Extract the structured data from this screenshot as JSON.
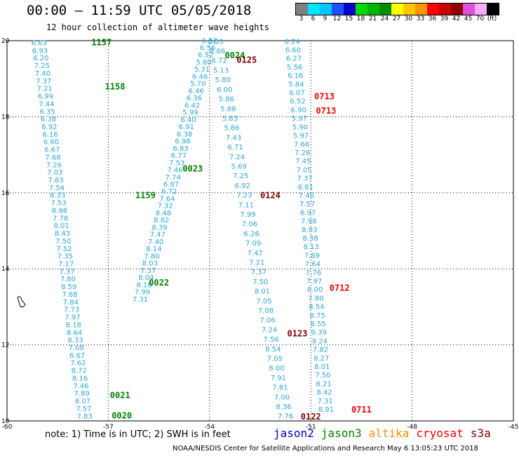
{
  "header": {
    "title": "00:00 – 11:59 UTC 05/05/2018",
    "subtitle": "12 hour collection of altimeter wave heights"
  },
  "colorbar": {
    "labels": [
      "3",
      "6",
      "9",
      "12",
      "15",
      "18",
      "21",
      "24",
      "27",
      "30",
      "33",
      "36",
      "39",
      "42",
      "45",
      "70",
      "(ft)"
    ],
    "colors": [
      "#808080",
      "#00e5ff",
      "#00c8ff",
      "#1e50ff",
      "#0000c8",
      "#00dc00",
      "#00b400",
      "#008c00",
      "#ffff00",
      "#ffc800",
      "#ff9600",
      "#ff0000",
      "#c80000",
      "#8c0000",
      "#dc50dc",
      "#ffaaff",
      "#000000"
    ]
  },
  "map": {
    "lon_ticks": [
      "-60",
      "-57",
      "-54",
      "-51",
      "-48",
      "-45"
    ],
    "lat_ticks": [
      "20",
      "18",
      "16",
      "14",
      "12",
      "10"
    ],
    "lon_range": [
      -60,
      -45
    ],
    "lat_range": [
      10,
      20
    ],
    "grid": "dotted",
    "passes": [
      {
        "label": "1157",
        "color": "#008000",
        "lx": -57.5,
        "ly": 19.88,
        "values": [
          "6.63",
          "6.93",
          "6.20",
          "7.25",
          "7.40",
          "7.37",
          "7.21",
          "6.99",
          "7.44",
          "6.35",
          "6.38",
          "6.92",
          "6.16",
          "6.60",
          "6.67",
          "7.68",
          "7.26",
          "7.03",
          "7.63",
          "7.54",
          "8.33",
          "7.53",
          "8.98",
          "7.78",
          "8.01",
          "8.43",
          "7.50",
          "7.52",
          "7.35",
          "7.17",
          "7.37",
          "7.80",
          "8.59",
          "7.88",
          "7.84",
          "7.73",
          "7.97",
          "8.18",
          "8.64",
          "8.33",
          "7.08",
          "6.67",
          "7.62",
          "8.72",
          "8.16",
          "7.46",
          "7.89",
          "8.07",
          "7.57",
          "7.83"
        ],
        "lat0": 19.88,
        "lat1": 10.06,
        "lon0": -59.05,
        "lon1": -57.7
      },
      {
        "label": "1158",
        "color": "#008000",
        "lx": -57.1,
        "ly": 18.72,
        "values": [],
        "lat0": 0,
        "lat1": 0,
        "lon0": 0,
        "lon1": 0
      },
      {
        "label": "1159",
        "color": "#008000",
        "lx": -56.2,
        "ly": 15.86,
        "values": [],
        "lat0": 0,
        "lat1": 0,
        "lon0": 0,
        "lon1": 0
      },
      {
        "label": "0020",
        "color": "#008000",
        "lx": -56.9,
        "ly": 10.06,
        "values": [
          "6.52",
          "6.56",
          "6.52",
          "5.80",
          "5.31",
          "6.46",
          "5.70",
          "6.46",
          "6.36",
          "6.42",
          "5.99",
          "6.40",
          "6.91",
          "6.38",
          "6.98",
          "6.83",
          "6.77",
          "7.53",
          "7.46",
          "7.74",
          "6.87",
          "6.72",
          "7.64",
          "7.32",
          "8.48",
          "8.82",
          "8.39",
          "7.47",
          "7.40",
          "8.14",
          "7.80",
          "8.03",
          "7.37",
          "8.04",
          "8.18",
          "7.99",
          "7.31"
        ],
        "lat0": 19.94,
        "lat1": 13.14,
        "lon0": -54.0,
        "lon1": -56.05
      },
      {
        "label": "0021",
        "color": "#008000",
        "lx": -56.95,
        "ly": 10.6,
        "values": [],
        "lat0": 0,
        "lat1": 0,
        "lon0": 0,
        "lon1": 0
      },
      {
        "label": "0022",
        "color": "#008000",
        "lx": -55.8,
        "ly": 13.56,
        "values": [],
        "lat0": 0,
        "lat1": 0,
        "lon0": 0,
        "lon1": 0
      },
      {
        "label": "0023",
        "color": "#008000",
        "lx": -54.8,
        "ly": 16.56,
        "values": [],
        "lat0": 0,
        "lat1": 0,
        "lon0": 0,
        "lon1": 0
      },
      {
        "label": "0024",
        "color": "#008000",
        "lx": -53.55,
        "ly": 19.54,
        "values": [],
        "lat0": 0,
        "lat1": 0,
        "lon0": 0,
        "lon1": 0
      },
      {
        "label": "0125",
        "color": "#800000",
        "lx": -53.2,
        "ly": 19.42,
        "values": [
          "6.53",
          "6.66",
          "6.72",
          "5.13",
          "5.80",
          "6.00",
          "5.86",
          "5.88",
          "5.83",
          "5.86",
          "7.43",
          "6.71",
          "7.24",
          "5.69",
          "7.25",
          "6.92",
          "7.23",
          "7.11",
          "7.99",
          "7.06",
          "6.26",
          "7.09",
          "7.47",
          "7.21",
          "7.37",
          "7.50",
          "8.01",
          "7.05",
          "7.08",
          "7.06",
          "7.24",
          "7.56",
          "8.54",
          "7.05",
          "8.00",
          "7.91",
          "7.81",
          "7.00",
          "8.36",
          "7.76"
        ],
        "lat0": 19.92,
        "lat1": 10.06,
        "lon0": -53.82,
        "lon1": -51.75
      },
      {
        "label": "0124",
        "color": "#800000",
        "lx": -52.5,
        "ly": 15.86,
        "values": [],
        "lat0": 0,
        "lat1": 0,
        "lon0": 0,
        "lon1": 0
      },
      {
        "label": "0123",
        "color": "#800000",
        "lx": -51.7,
        "ly": 12.22,
        "values": [],
        "lat0": 0,
        "lat1": 0,
        "lon0": 0,
        "lon1": 0
      },
      {
        "label": "0122",
        "color": "#800000",
        "lx": -51.3,
        "ly": 10.04,
        "values": [],
        "lat0": 0,
        "lat1": 0,
        "lon0": 0,
        "lon1": 0
      },
      {
        "label": "0713",
        "color": "#ff0000",
        "lx": -50.9,
        "ly": 18.46,
        "values": [
          "6.24",
          "6.60",
          "6.27",
          "5.56",
          "6.16",
          "5.84",
          "6.07",
          "6.52",
          "6.90",
          "5.97",
          "5.90",
          "5.97",
          "7.66",
          "7.28",
          "7.45",
          "7.05",
          "7.37",
          "6.81",
          "7.46",
          "7.57",
          "6.97",
          "7.98",
          "8.03",
          "8.38",
          "8.13",
          "7.89",
          "7.64",
          "7.76",
          "7.97",
          "8.00",
          "7.80",
          "8.54",
          "8.75",
          "8.55",
          "9.39",
          "9.24",
          "7.82",
          "8.27",
          "8.01",
          "7.50",
          "8.21",
          "8.42",
          "7.31",
          "8.91"
        ],
        "lat0": 19.92,
        "lat1": 10.24,
        "lon0": -51.55,
        "lon1": -50.55
      },
      {
        "label": "0713",
        "color": "#ff0000",
        "lx": -50.85,
        "ly": 18.08,
        "values": [],
        "lat0": 0,
        "lat1": 0,
        "lon0": 0,
        "lon1": 0
      },
      {
        "label": "0712",
        "color": "#ff0000",
        "lx": -50.45,
        "ly": 13.42,
        "values": [],
        "lat0": 0,
        "lat1": 0,
        "lon0": 0,
        "lon1": 0
      },
      {
        "label": "0711",
        "color": "#ff0000",
        "lx": -49.8,
        "ly": 10.22,
        "values": [],
        "lat0": 0,
        "lat1": 0,
        "lon0": 0,
        "lon1": 0
      }
    ]
  },
  "note": "note:  1) Time is in UTC;  2) SWH is in feet",
  "satellites": [
    {
      "name": "jason2",
      "color": "#0000c8"
    },
    {
      "name": "jason3",
      "color": "#008000"
    },
    {
      "name": "altika",
      "color": "#ff8c00"
    },
    {
      "name": "cryosat",
      "color": "#ff0000"
    },
    {
      "name": "s3a",
      "color": "#800000"
    }
  ],
  "footer": "NOAA/NESDIS Center for Satellite Applications and Research    May  6 13:05:23 UTC 2018"
}
